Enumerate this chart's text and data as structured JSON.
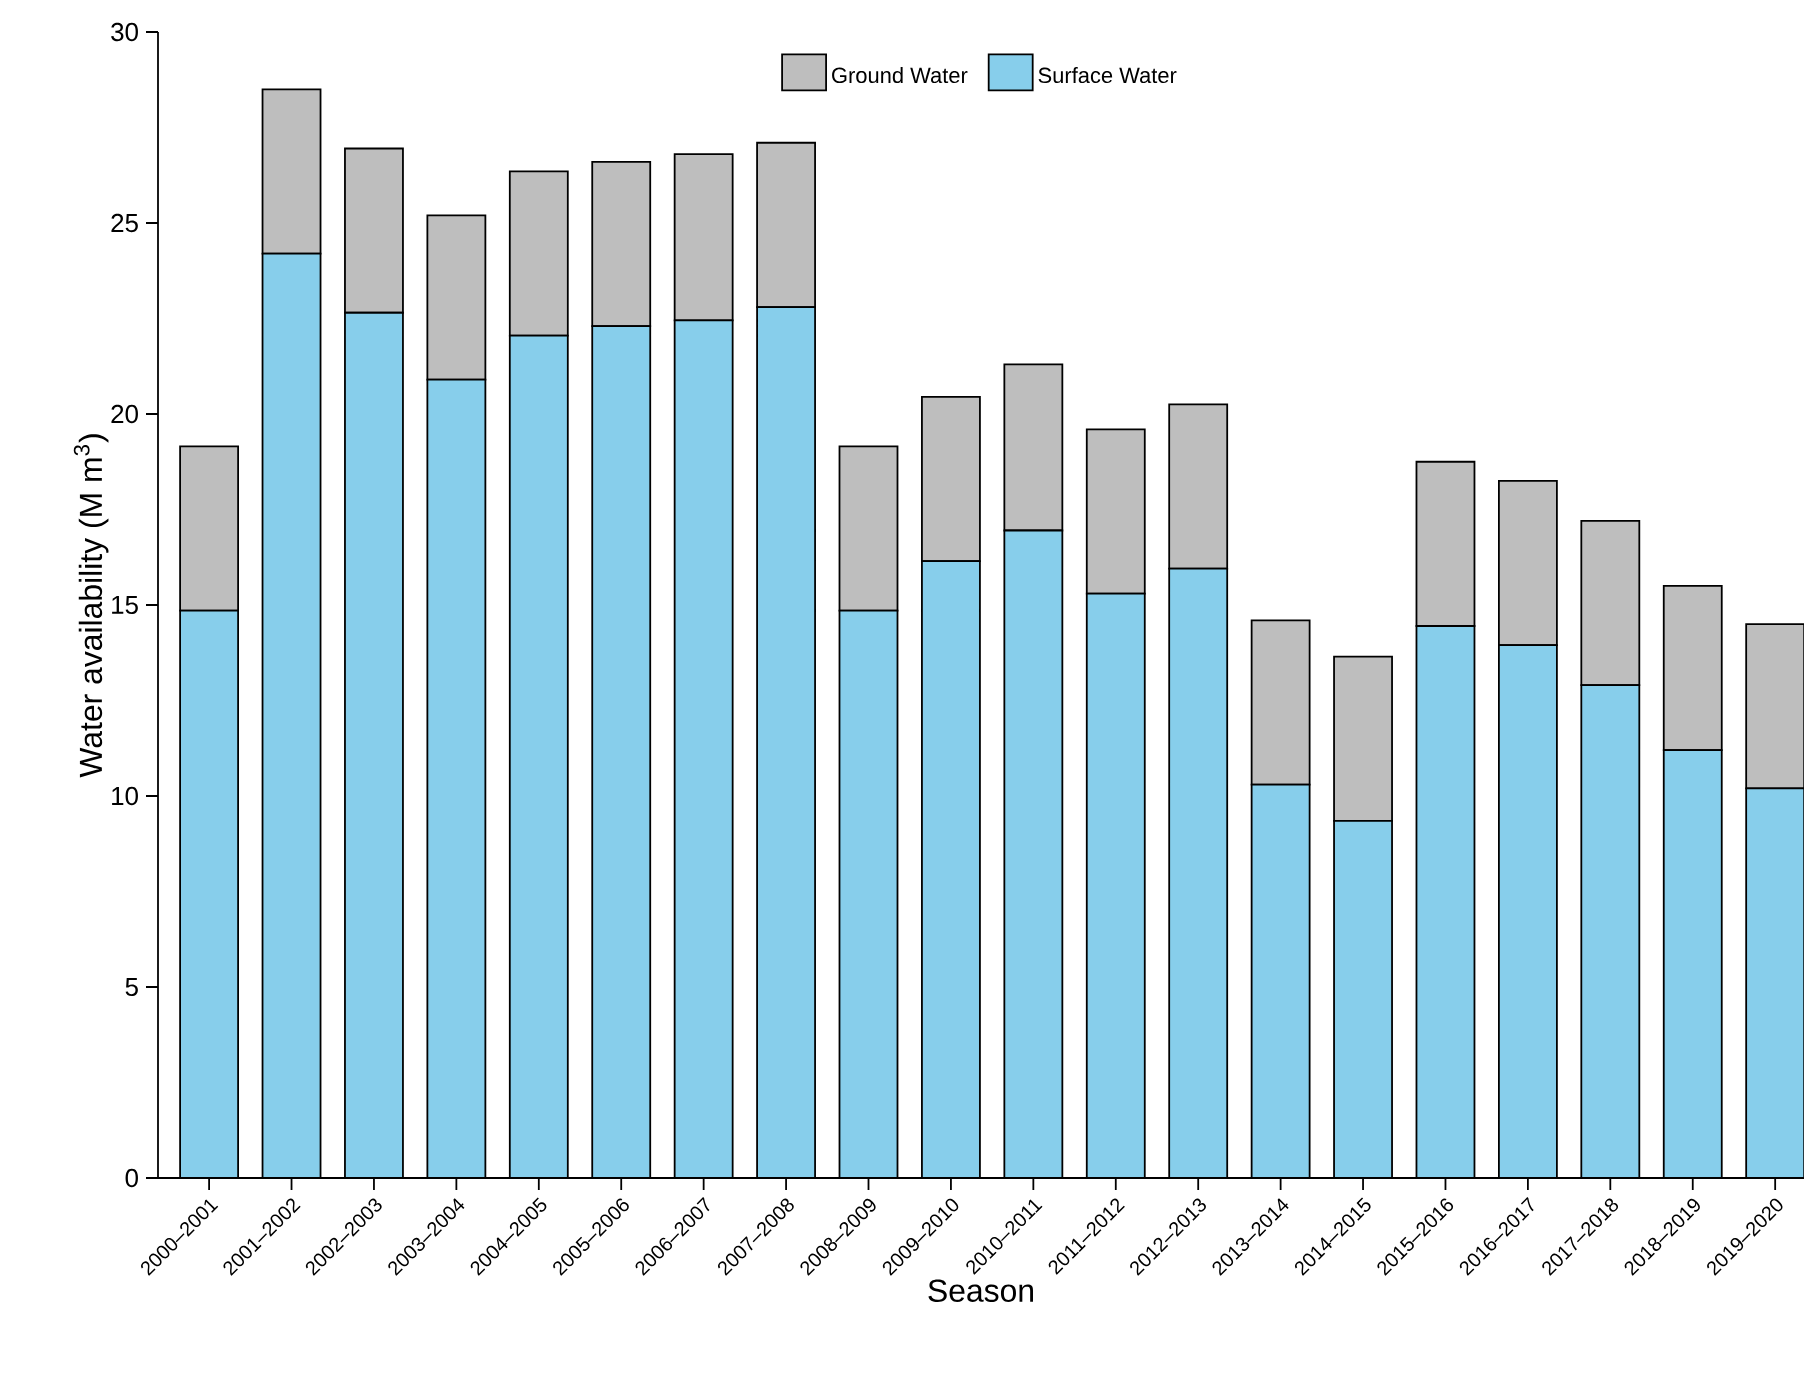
{
  "chart_data": {
    "type": "bar",
    "stacked": true,
    "xlabel": "Season",
    "ylabel": "Water availability (M m$^{3}$)",
    "categories": [
      "2000–2001",
      "2001–2002",
      "2002–2003",
      "2003–2004",
      "2004–2005",
      "2005–2006",
      "2006–2007",
      "2007–2008",
      "2008–2009",
      "2009–2010",
      "2010–2011",
      "2011–2012",
      "2012–2013",
      "2013–2014",
      "2014–2015",
      "2015–2016",
      "2016–2017",
      "2017–2018",
      "2018–2019",
      "2019–2020"
    ],
    "series": [
      {
        "name": "Surface Water",
        "color": "#87ceeb",
        "values": [
          14.85,
          24.2,
          22.65,
          20.9,
          22.05,
          22.3,
          22.45,
          22.8,
          14.85,
          16.15,
          16.95,
          15.3,
          15.95,
          10.3,
          9.35,
          14.45,
          13.95,
          12.9,
          11.2,
          10.2
        ]
      },
      {
        "name": "Ground Water",
        "color": "#bebebe",
        "values": [
          4.3,
          4.3,
          4.3,
          4.3,
          4.3,
          4.3,
          4.35,
          4.3,
          4.3,
          4.3,
          4.35,
          4.3,
          4.3,
          4.3,
          4.3,
          4.3,
          4.3,
          4.3,
          4.3,
          4.3
        ]
      }
    ],
    "ylim": [
      0,
      30
    ],
    "yticks": [
      0,
      5,
      10,
      15,
      20,
      25,
      30
    ],
    "grid": false,
    "legend": "top"
  }
}
